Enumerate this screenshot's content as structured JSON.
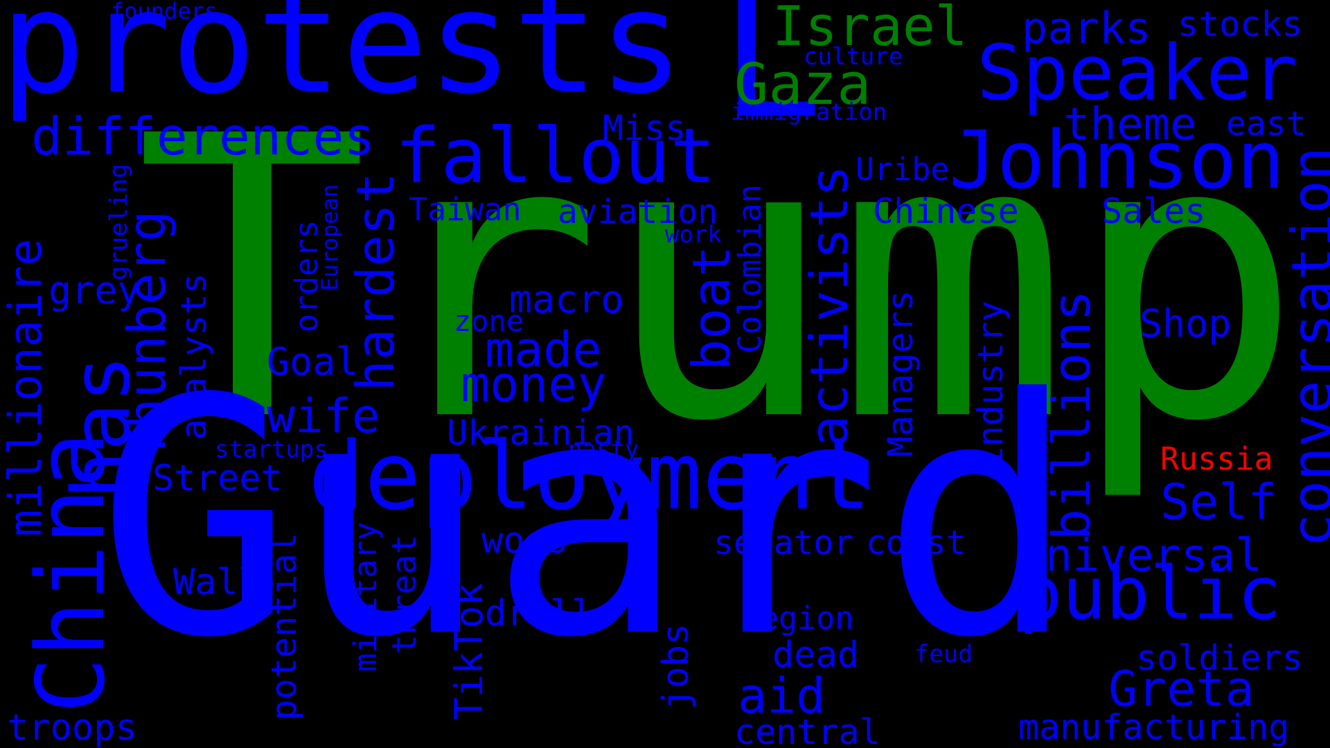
{
  "colors": {
    "background": "#000000",
    "blue": "#0000ff",
    "green": "#008000",
    "red": "#ff0000"
  },
  "words": [
    {
      "text": "Trump",
      "color": "green"
    },
    {
      "text": "Guard",
      "color": "blue"
    },
    {
      "text": "protests",
      "color": "blue"
    },
    {
      "text": "deployment",
      "color": "blue"
    },
    {
      "text": "fallout",
      "color": "blue"
    },
    {
      "text": "Johnson",
      "color": "blue"
    },
    {
      "text": "Speaker",
      "color": "blue"
    },
    {
      "text": "China",
      "color": "blue"
    },
    {
      "text": "L",
      "color": "blue"
    },
    {
      "text": "public",
      "color": "blue"
    },
    {
      "text": "differences",
      "color": "blue"
    },
    {
      "text": "Israel",
      "color": "green"
    },
    {
      "text": "Gaza",
      "color": "green"
    },
    {
      "text": "parks",
      "color": "blue"
    },
    {
      "text": "stocks",
      "color": "blue"
    },
    {
      "text": "founders",
      "color": "blue"
    },
    {
      "text": "culture",
      "color": "blue"
    },
    {
      "text": "immigration",
      "color": "blue"
    },
    {
      "text": "theme",
      "color": "blue"
    },
    {
      "text": "east",
      "color": "blue"
    },
    {
      "text": "Miss",
      "color": "blue"
    },
    {
      "text": "Uribe",
      "color": "blue"
    },
    {
      "text": "Taiwan",
      "color": "blue"
    },
    {
      "text": "aviation",
      "color": "blue"
    },
    {
      "text": "Chinese",
      "color": "blue"
    },
    {
      "text": "Sales",
      "color": "blue"
    },
    {
      "text": "work",
      "color": "blue"
    },
    {
      "text": "macro",
      "color": "blue"
    },
    {
      "text": "zone",
      "color": "blue"
    },
    {
      "text": "made",
      "color": "blue"
    },
    {
      "text": "money",
      "color": "blue"
    },
    {
      "text": "wife",
      "color": "blue"
    },
    {
      "text": "Goal",
      "color": "blue"
    },
    {
      "text": "Shop",
      "color": "blue"
    },
    {
      "text": "Ukrainian",
      "color": "blue"
    },
    {
      "text": "nasty",
      "color": "blue"
    },
    {
      "text": "startups",
      "color": "blue"
    },
    {
      "text": "Street",
      "color": "blue"
    },
    {
      "text": "grey",
      "color": "blue"
    },
    {
      "text": "Russia",
      "color": "red"
    },
    {
      "text": "Self",
      "color": "blue"
    },
    {
      "text": "Universal",
      "color": "blue"
    },
    {
      "text": "woes",
      "color": "blue"
    },
    {
      "text": "senator",
      "color": "blue"
    },
    {
      "text": "coast",
      "color": "blue"
    },
    {
      "text": "Wall",
      "color": "blue"
    },
    {
      "text": "drill",
      "color": "blue"
    },
    {
      "text": "region",
      "color": "blue"
    },
    {
      "text": "dead",
      "color": "blue"
    },
    {
      "text": "feud",
      "color": "blue"
    },
    {
      "text": "soldiers",
      "color": "blue"
    },
    {
      "text": "Greta",
      "color": "blue"
    },
    {
      "text": "aid",
      "color": "blue"
    },
    {
      "text": "central",
      "color": "blue"
    },
    {
      "text": "manufacturing",
      "color": "blue"
    },
    {
      "text": "troops",
      "color": "blue"
    },
    {
      "text": "has",
      "color": "blue"
    },
    {
      "text": "millionaire",
      "color": "blue"
    },
    {
      "text": "grueling",
      "color": "blue"
    },
    {
      "text": "Thunberg",
      "color": "blue"
    },
    {
      "text": "analysts",
      "color": "blue"
    },
    {
      "text": "hardest",
      "color": "blue"
    },
    {
      "text": "orders",
      "color": "blue"
    },
    {
      "text": "European",
      "color": "blue"
    },
    {
      "text": "boat",
      "color": "blue"
    },
    {
      "text": "Colombian",
      "color": "blue"
    },
    {
      "text": "activists",
      "color": "blue"
    },
    {
      "text": "Managers",
      "color": "blue"
    },
    {
      "text": "industry",
      "color": "blue"
    },
    {
      "text": "billions",
      "color": "blue"
    },
    {
      "text": "conversation",
      "color": "blue"
    },
    {
      "text": "potential",
      "color": "blue"
    },
    {
      "text": "military",
      "color": "blue"
    },
    {
      "text": "threat",
      "color": "blue"
    },
    {
      "text": "TikTok",
      "color": "blue"
    },
    {
      "text": "jobs",
      "color": "blue"
    }
  ]
}
